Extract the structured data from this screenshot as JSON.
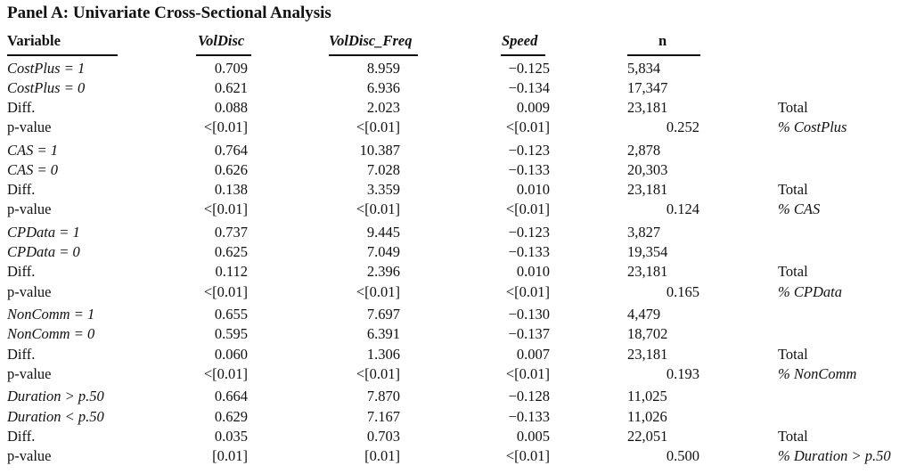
{
  "panel_title": "Panel A: Univariate Cross-Sectional Analysis",
  "headers": {
    "variable": "Variable",
    "voldisc": "VolDisc",
    "voldisc_freq": "VolDisc_Freq",
    "speed": "Speed",
    "n": "n"
  },
  "groups": [
    {
      "rows": [
        {
          "label": "CostPlus = 1",
          "italic": true,
          "voldisc": "0.709",
          "voldisc_freq": "8.959",
          "speed": "−0.125",
          "n": "5,834",
          "right_label": ""
        },
        {
          "label": "CostPlus = 0",
          "italic": true,
          "voldisc": "0.621",
          "voldisc_freq": "6.936",
          "speed": "−0.134",
          "n": "17,347",
          "right_label": ""
        },
        {
          "label": "Diff.",
          "italic": false,
          "voldisc": "0.088",
          "voldisc_freq": "2.023",
          "speed": "0.009",
          "n": "23,181",
          "right_label": "Total"
        },
        {
          "label": "p-value",
          "italic": false,
          "voldisc": "<[0.01]",
          "voldisc_freq": "<[0.01]",
          "speed": "<[0.01]",
          "n": "0.252",
          "right_label": "% CostPlus"
        }
      ]
    },
    {
      "rows": [
        {
          "label": "CAS = 1",
          "italic": true,
          "voldisc": "0.764",
          "voldisc_freq": "10.387",
          "speed": "−0.123",
          "n": "2,878",
          "right_label": ""
        },
        {
          "label": "CAS = 0",
          "italic": true,
          "voldisc": "0.626",
          "voldisc_freq": "7.028",
          "speed": "−0.133",
          "n": "20,303",
          "right_label": ""
        },
        {
          "label": "Diff.",
          "italic": false,
          "voldisc": "0.138",
          "voldisc_freq": "3.359",
          "speed": "0.010",
          "n": "23,181",
          "right_label": "Total"
        },
        {
          "label": "p-value",
          "italic": false,
          "voldisc": "<[0.01]",
          "voldisc_freq": "<[0.01]",
          "speed": "<[0.01]",
          "n": "0.124",
          "right_label": "% CAS"
        }
      ]
    },
    {
      "rows": [
        {
          "label": "CPData = 1",
          "italic": true,
          "voldisc": "0.737",
          "voldisc_freq": "9.445",
          "speed": "−0.123",
          "n": "3,827",
          "right_label": ""
        },
        {
          "label": "CPData = 0",
          "italic": true,
          "voldisc": "0.625",
          "voldisc_freq": "7.049",
          "speed": "−0.133",
          "n": "19,354",
          "right_label": ""
        },
        {
          "label": "Diff.",
          "italic": false,
          "voldisc": "0.112",
          "voldisc_freq": "2.396",
          "speed": "0.010",
          "n": "23,181",
          "right_label": "Total"
        },
        {
          "label": "p-value",
          "italic": false,
          "voldisc": "<[0.01]",
          "voldisc_freq": "<[0.01]",
          "speed": "<[0.01]",
          "n": "0.165",
          "right_label": "% CPData"
        }
      ]
    },
    {
      "rows": [
        {
          "label": "NonComm = 1",
          "italic": true,
          "voldisc": "0.655",
          "voldisc_freq": "7.697",
          "speed": "−0.130",
          "n": "4,479",
          "right_label": ""
        },
        {
          "label": "NonComm = 0",
          "italic": true,
          "voldisc": "0.595",
          "voldisc_freq": "6.391",
          "speed": "−0.137",
          "n": "18,702",
          "right_label": ""
        },
        {
          "label": "Diff.",
          "italic": false,
          "voldisc": "0.060",
          "voldisc_freq": "1.306",
          "speed": "0.007",
          "n": "23,181",
          "right_label": "Total"
        },
        {
          "label": "p-value",
          "italic": false,
          "voldisc": "<[0.01]",
          "voldisc_freq": "<[0.01]",
          "speed": "<[0.01]",
          "n": "0.193",
          "right_label": "% NonComm"
        }
      ]
    },
    {
      "rows": [
        {
          "label": "Duration > p.50",
          "italic": true,
          "voldisc": "0.664",
          "voldisc_freq": "7.870",
          "speed": "−0.128",
          "n": "11,025",
          "right_label": ""
        },
        {
          "label": "Duration < p.50",
          "italic": true,
          "voldisc": "0.629",
          "voldisc_freq": "7.167",
          "speed": "−0.133",
          "n": "11,026",
          "right_label": ""
        },
        {
          "label": "Diff.",
          "italic": false,
          "voldisc": "0.035",
          "voldisc_freq": "0.703",
          "speed": "0.005",
          "n": "22,051",
          "right_label": "Total"
        },
        {
          "label": "p-value",
          "italic": false,
          "voldisc": "[0.01]",
          "voldisc_freq": "[0.01]",
          "speed": "<[0.01]",
          "n": "0.500",
          "right_label": "% Duration > p.50"
        }
      ]
    }
  ]
}
